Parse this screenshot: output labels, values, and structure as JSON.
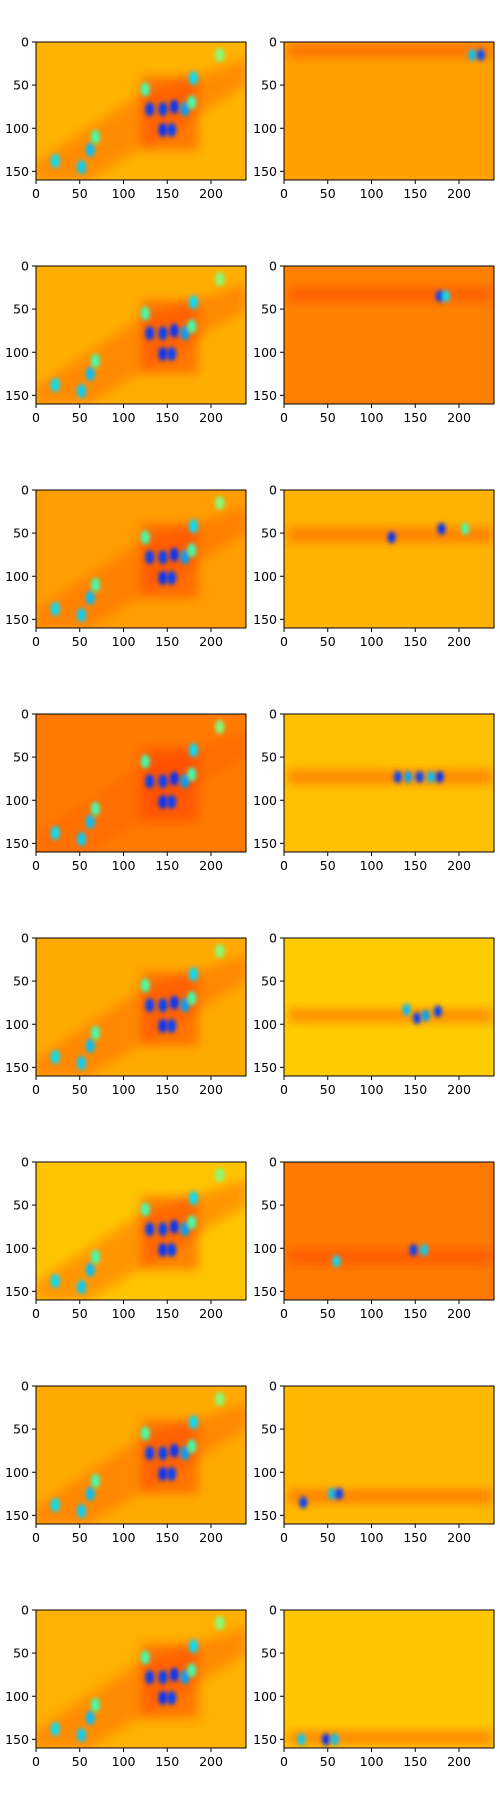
{
  "chart_data": {
    "type": "heatmap",
    "layout": {
      "rows": 8,
      "cols": 2
    },
    "colormap": "jet",
    "xlim": [
      0,
      240
    ],
    "ylim": [
      160,
      0
    ],
    "xticks": [
      0,
      50,
      100,
      150,
      200
    ],
    "yticks": [
      0,
      50,
      100,
      150
    ],
    "left_background": [
      "#ffb200",
      "#ffae00",
      "#ff9d00",
      "#ff7a00",
      "#ffaa00",
      "#ffc400",
      "#ffaa00",
      "#ffb000"
    ],
    "right_background": [
      "#ffa000",
      "#ff7f00",
      "#ffb200",
      "#ffc000",
      "#ffcc00",
      "#ff7800",
      "#ffb800",
      "#ffc600"
    ],
    "right_band_center_y": [
      10,
      33,
      52,
      73,
      90,
      110,
      128,
      148
    ],
    "right_hotspots": [
      [
        [
          215,
          15,
          "#00c8ff"
        ],
        [
          225,
          15,
          "#0050ff"
        ]
      ],
      [
        [
          178,
          35,
          "#0040ff"
        ],
        [
          185,
          35,
          "#00e0ff"
        ]
      ],
      [
        [
          123,
          55,
          "#0030ff"
        ],
        [
          180,
          45,
          "#0030ff"
        ],
        [
          207,
          45,
          "#40ffb0"
        ]
      ],
      [
        [
          130,
          73,
          "#0040ff"
        ],
        [
          142,
          73,
          "#00a0ff"
        ],
        [
          155,
          73,
          "#0040ff"
        ],
        [
          168,
          73,
          "#00c0ff"
        ],
        [
          178,
          73,
          "#0030ff"
        ]
      ],
      [
        [
          140,
          83,
          "#00c0ff"
        ],
        [
          152,
          93,
          "#0040ff"
        ],
        [
          162,
          90,
          "#00a0ff"
        ],
        [
          176,
          85,
          "#0040ff"
        ]
      ],
      [
        [
          60,
          115,
          "#00e0ff"
        ],
        [
          148,
          102,
          "#0040ff"
        ],
        [
          160,
          102,
          "#00d0ff"
        ]
      ],
      [
        [
          22,
          135,
          "#0040ff"
        ],
        [
          55,
          125,
          "#00c0ff"
        ],
        [
          63,
          125,
          "#0040ff"
        ]
      ],
      [
        [
          20,
          150,
          "#00d0ff"
        ],
        [
          48,
          150,
          "#0030ff"
        ],
        [
          58,
          150,
          "#00c0ff"
        ]
      ]
    ],
    "left_dominant_blob_extent": [
      [
        120,
        40
      ],
      [
        185,
        125
      ]
    ],
    "left_blobs": [
      [
        22,
        138,
        "#00e0ff"
      ],
      [
        52,
        145,
        "#00d0ff"
      ],
      [
        62,
        125,
        "#00c0ff"
      ],
      [
        68,
        110,
        "#40ffb0"
      ],
      [
        130,
        78,
        "#0040ff"
      ],
      [
        145,
        78,
        "#0040ff"
      ],
      [
        158,
        75,
        "#0030ff"
      ],
      [
        170,
        78,
        "#00a0ff"
      ],
      [
        145,
        102,
        "#0030ff"
      ],
      [
        155,
        102,
        "#0040ff"
      ],
      [
        125,
        55,
        "#40ffb0"
      ],
      [
        180,
        42,
        "#00e0ff"
      ],
      [
        178,
        70,
        "#40ffb0"
      ],
      [
        210,
        15,
        "#80ff80"
      ]
    ]
  }
}
